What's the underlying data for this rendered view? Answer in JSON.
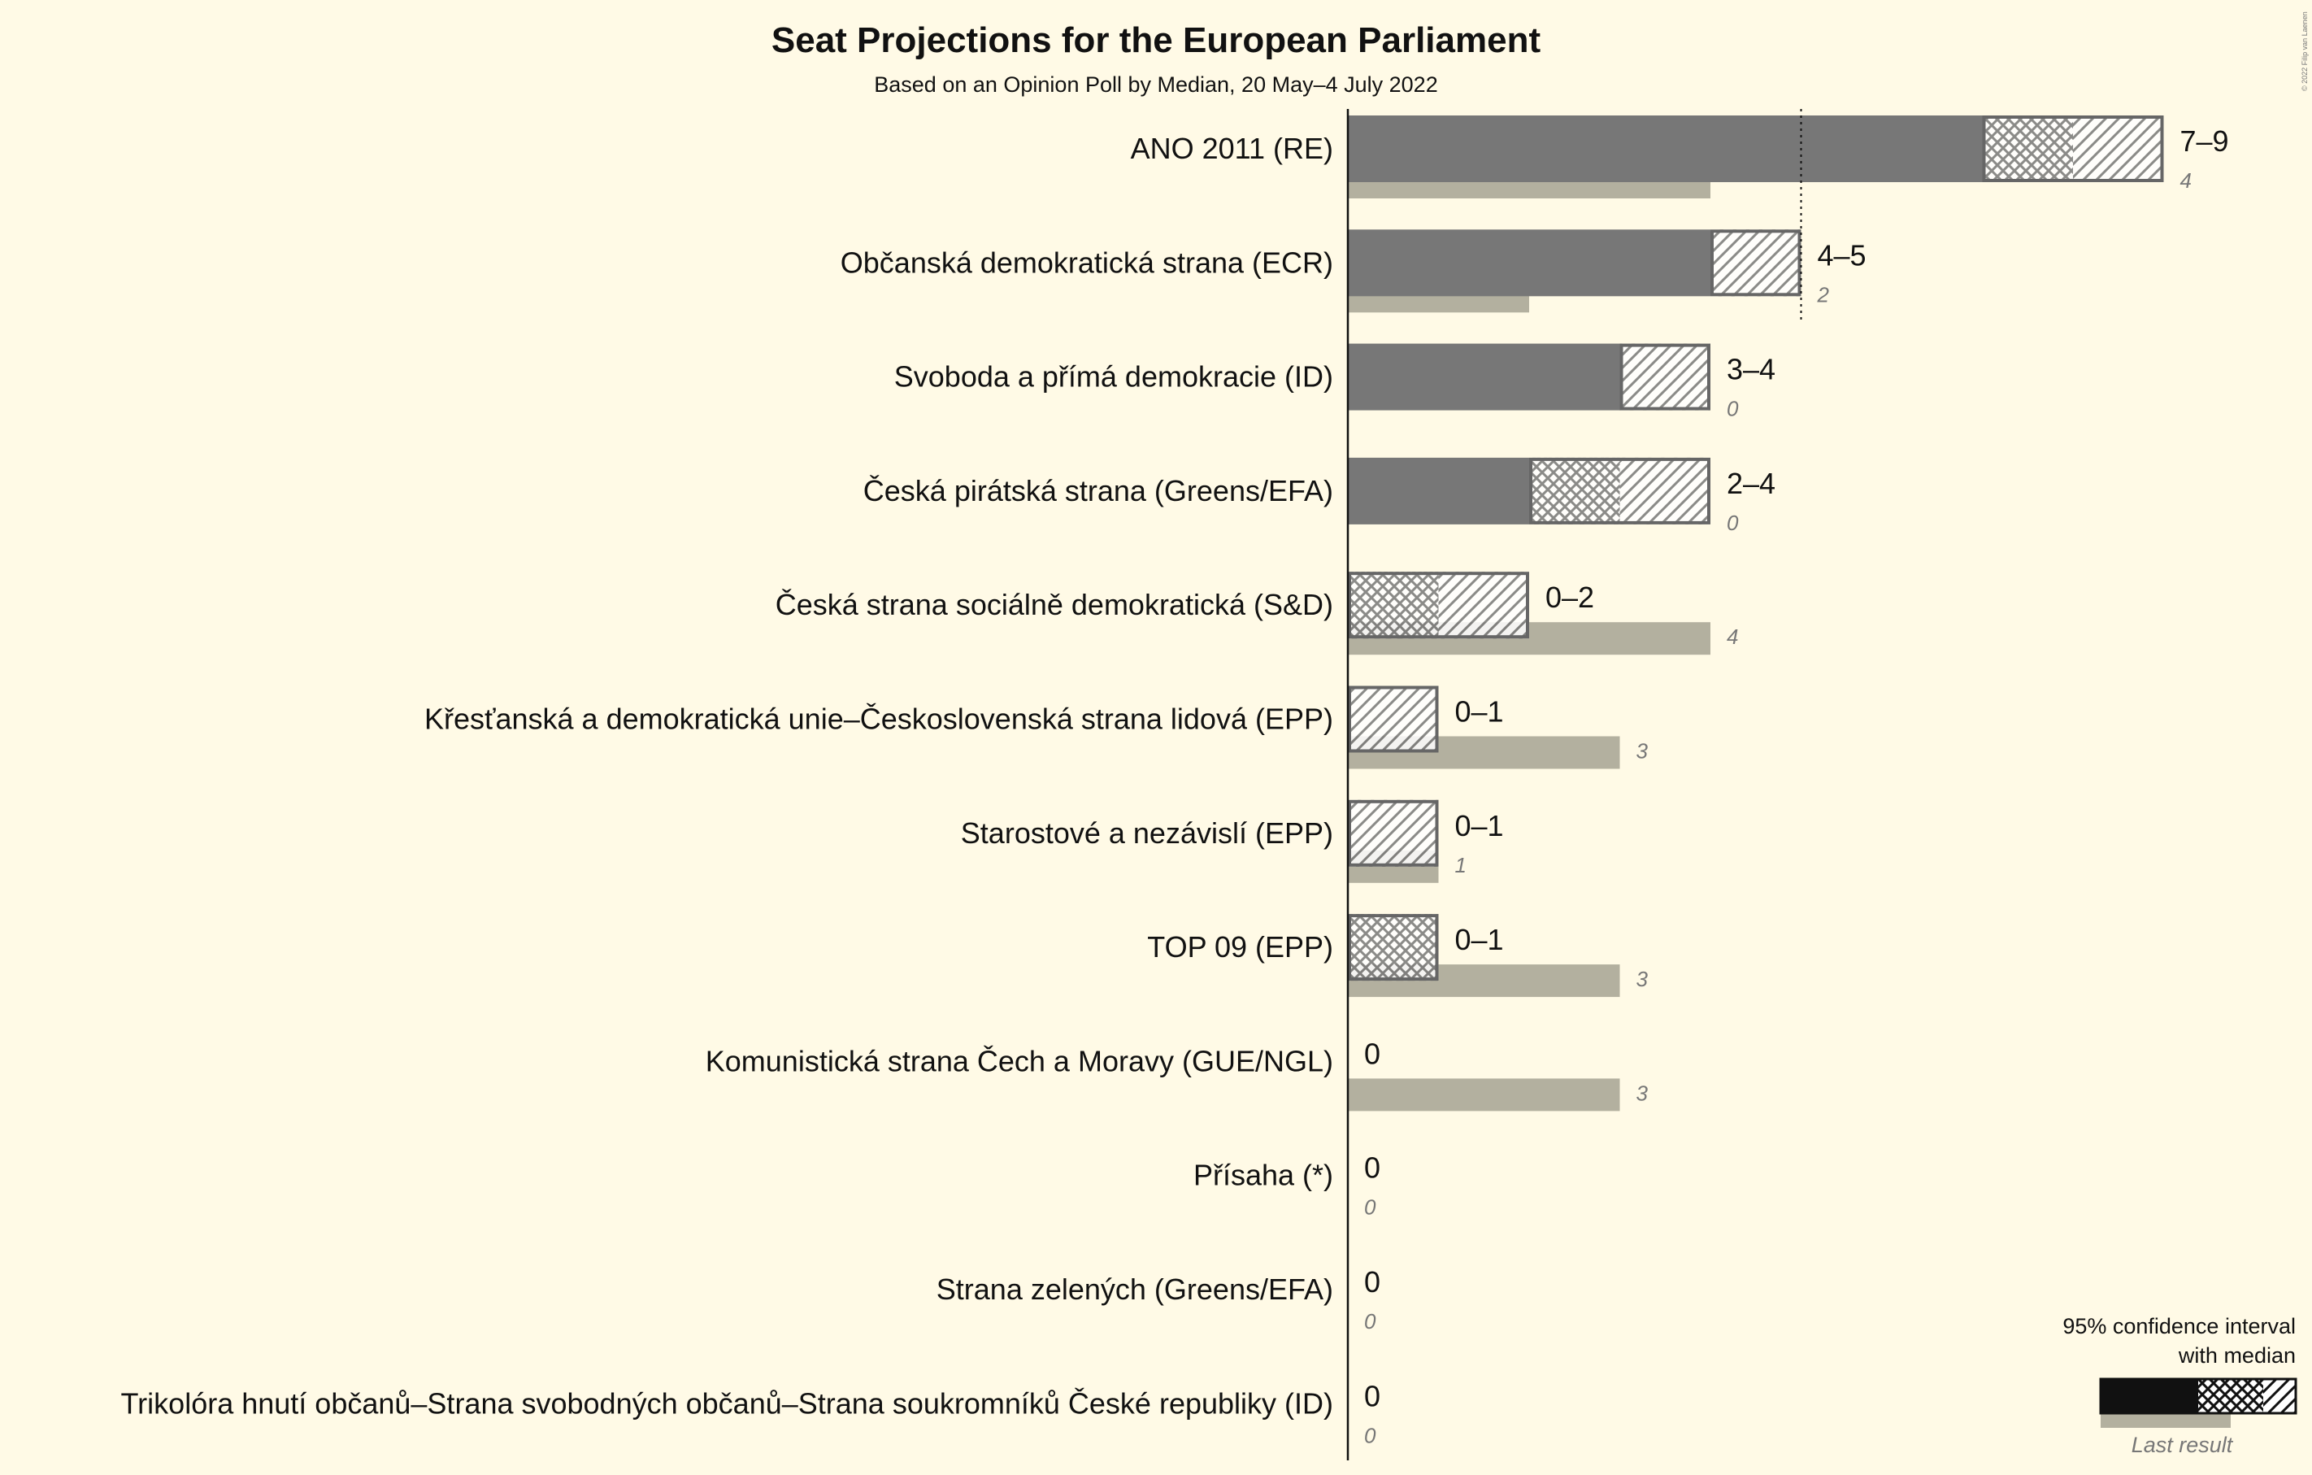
{
  "chart_data": {
    "type": "bar",
    "title": "Seat Projections for the European Parliament",
    "subtitle": "Based on an Opinion Poll by Median, 20 May–4 July 2022",
    "xlim": [
      0,
      9
    ],
    "majority_line": 5,
    "categories": [
      "ANO 2011 (RE)",
      "Občanská demokratická strana (ECR)",
      "Svoboda a přímá demokracie (ID)",
      "Česká pirátská strana (Greens/EFA)",
      "Česká strana sociálně demokratická (S&D)",
      "Křesťanská a demokratická unie–Československá strana lidová (EPP)",
      "Starostové a nezávislí (EPP)",
      "TOP 09 (EPP)",
      "Komunistická strana Čech a Moravy (GUE/NGL)",
      "Přísaha (*)",
      "Strana zelených (Greens/EFA)",
      "Trikolóra hnutí občanů–Strana svobodných občanů–Strana soukromníků České republiky (ID)"
    ],
    "series": [
      {
        "name": "95% confidence interval with median",
        "low": [
          7,
          4,
          3,
          2,
          0,
          0,
          0,
          0,
          0,
          0,
          0,
          0
        ],
        "median": [
          8,
          4,
          3,
          3,
          1,
          0,
          0,
          1,
          0,
          0,
          0,
          0
        ],
        "high": [
          9,
          5,
          4,
          4,
          2,
          1,
          1,
          1,
          0,
          0,
          0,
          0
        ]
      },
      {
        "name": "Last result",
        "values": [
          4,
          2,
          0,
          0,
          4,
          3,
          1,
          3,
          3,
          0,
          0,
          0
        ]
      }
    ],
    "range_labels": [
      "7–9",
      "4–5",
      "3–4",
      "2–4",
      "0–2",
      "0–1",
      "0–1",
      "0–1",
      "0",
      "0",
      "0",
      "0"
    ],
    "last_labels": [
      "4",
      "2",
      "0",
      "0",
      "4",
      "3",
      "1",
      "3",
      "3",
      "0",
      "0",
      "0"
    ],
    "legend": {
      "title_line1": "95% confidence interval",
      "title_line2": "with median",
      "last_result": "Last result",
      "position": "bottom-right"
    },
    "copyright": "© 2022 Filip van Laenen",
    "colors": {
      "background": "#fffae6",
      "bar": "#777777",
      "last": "#b3b09f",
      "outline": "#666666",
      "text": "#111111"
    }
  }
}
